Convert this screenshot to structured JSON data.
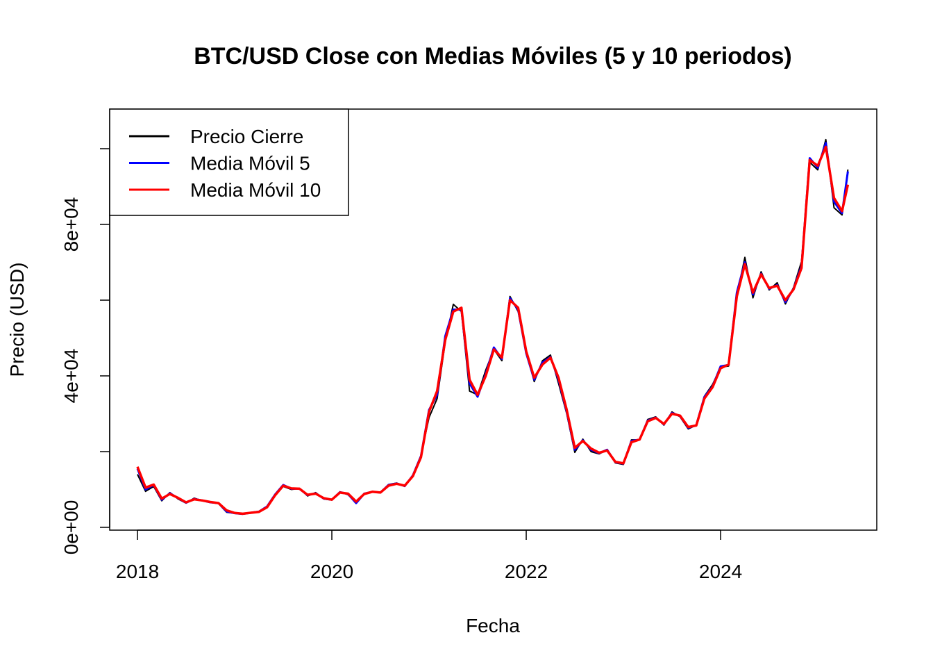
{
  "chart_data": {
    "type": "line",
    "title": "BTC/USD Close con Medias Móviles (5 y 10 periodos)",
    "x_label": "Fecha",
    "y_label": "Precio (USD)",
    "x": [
      2018.0,
      2018.083,
      2018.167,
      2018.25,
      2018.333,
      2018.417,
      2018.5,
      2018.583,
      2018.667,
      2018.75,
      2018.833,
      2018.917,
      2019.0,
      2019.083,
      2019.167,
      2019.25,
      2019.333,
      2019.417,
      2019.5,
      2019.583,
      2019.667,
      2019.75,
      2019.833,
      2019.917,
      2020.0,
      2020.083,
      2020.167,
      2020.25,
      2020.333,
      2020.417,
      2020.5,
      2020.583,
      2020.667,
      2020.75,
      2020.833,
      2020.917,
      2021.0,
      2021.083,
      2021.167,
      2021.25,
      2021.333,
      2021.417,
      2021.5,
      2021.583,
      2021.667,
      2021.75,
      2021.833,
      2021.917,
      2022.0,
      2022.083,
      2022.167,
      2022.25,
      2022.333,
      2022.417,
      2022.5,
      2022.583,
      2022.667,
      2022.75,
      2022.833,
      2022.917,
      2023.0,
      2023.083,
      2023.167,
      2023.25,
      2023.333,
      2023.417,
      2023.5,
      2023.583,
      2023.667,
      2023.75,
      2023.833,
      2023.917,
      2024.0,
      2024.083,
      2024.167,
      2024.25,
      2024.333,
      2024.417,
      2024.5,
      2024.583,
      2024.667,
      2024.75,
      2024.833,
      2024.917,
      2025.0,
      2025.083,
      2025.167,
      2025.25,
      2025.31
    ],
    "series": [
      {
        "name": "Precio Cierre",
        "color": "#000000",
        "width": 2,
        "values": [
          14000,
          9500,
          10800,
          7000,
          9200,
          7500,
          6400,
          7700,
          7000,
          6600,
          6300,
          4000,
          3700,
          3500,
          3800,
          4100,
          5300,
          8500,
          10800,
          10000,
          10300,
          8300,
          9200,
          7500,
          7200,
          9400,
          8600,
          6500,
          8800,
          9500,
          9200,
          11300,
          11700,
          10800,
          13800,
          19000,
          29000,
          34000,
          49000,
          58900,
          57000,
          36000,
          35000,
          41500,
          47000,
          44000,
          61000,
          57000,
          46300,
          38500,
          44000,
          45500,
          38000,
          30000,
          19800,
          23300,
          20000,
          19400,
          20500,
          17000,
          16600,
          23100,
          23100,
          28500,
          29200,
          27000,
          30500,
          29200,
          26000,
          27000,
          34600,
          37700,
          42300,
          42600,
          61100,
          71300,
          60600,
          67500,
          62700,
          64600,
          59000,
          63300,
          70200,
          96400,
          94400,
          102400,
          84400,
          82500,
          94500
        ]
      },
      {
        "name": "Media Móvil 5",
        "color": "#0000ff",
        "width": 3,
        "values": [
          15500,
          10000,
          11200,
          7300,
          9000,
          7700,
          6500,
          7500,
          7100,
          6600,
          6400,
          4200,
          3750,
          3550,
          3850,
          4150,
          5500,
          8700,
          11200,
          10200,
          10200,
          8500,
          9000,
          7600,
          7300,
          9300,
          8800,
          6400,
          8900,
          9400,
          9200,
          11200,
          11600,
          10900,
          13700,
          18800,
          31000,
          35000,
          50500,
          57500,
          57500,
          38000,
          34500,
          40500,
          47500,
          44500,
          60500,
          57500,
          46000,
          39000,
          43500,
          45000,
          39000,
          30500,
          20500,
          23000,
          20500,
          19600,
          20500,
          17200,
          16800,
          22800,
          23200,
          28200,
          29000,
          27200,
          30200,
          29400,
          26300,
          27000,
          34400,
          37200,
          42500,
          42900,
          62000,
          70000,
          61500,
          67000,
          63000,
          64000,
          59500,
          63000,
          69000,
          97500,
          95000,
          101500,
          86000,
          83000,
          94000
        ]
      },
      {
        "name": "Media Móvil 10",
        "color": "#ff0000",
        "width": 3.5,
        "values": [
          16000,
          10500,
          11300,
          7600,
          8800,
          7800,
          6600,
          7400,
          7100,
          6700,
          6400,
          4500,
          3800,
          3600,
          3850,
          4100,
          5300,
          8500,
          11000,
          10300,
          10200,
          8600,
          8900,
          7700,
          7300,
          9200,
          8900,
          6800,
          8800,
          9400,
          9200,
          11000,
          11500,
          11000,
          13500,
          18500,
          30500,
          36000,
          49500,
          57000,
          58000,
          39000,
          35000,
          40000,
          47000,
          44800,
          60000,
          58000,
          46500,
          39500,
          43000,
          44800,
          39500,
          31000,
          21000,
          22800,
          20800,
          19700,
          20300,
          17300,
          16900,
          22500,
          23200,
          28000,
          28900,
          27300,
          30000,
          29500,
          26500,
          26900,
          34000,
          37000,
          42000,
          43000,
          61000,
          69500,
          62000,
          66800,
          63200,
          63800,
          60000,
          62800,
          68500,
          97000,
          95500,
          100500,
          87000,
          83500,
          90500
        ]
      }
    ],
    "xlim": [
      2017.714,
      2025.607
    ],
    "xticks": [
      2018,
      2020,
      2022,
      2024
    ],
    "ylim": [
      -734,
      110459
    ],
    "yticks": [
      {
        "value": 0,
        "label": "0e+00"
      },
      {
        "value": 20000,
        "label": null
      },
      {
        "value": 40000,
        "label": "4e+04"
      },
      {
        "value": 60000,
        "label": null
      },
      {
        "value": 80000,
        "label": "8e+04"
      },
      {
        "value": 100000,
        "label": null
      }
    ],
    "legend": "top-left",
    "grid": false
  }
}
